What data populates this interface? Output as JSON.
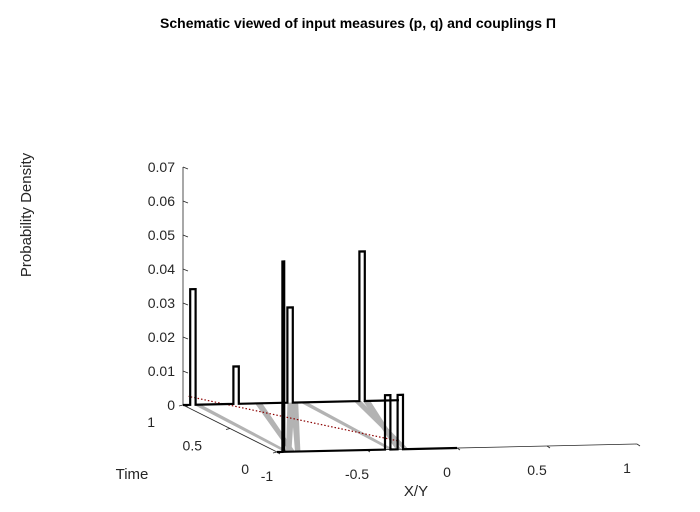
{
  "chart_data": {
    "type": "line",
    "title": "Schematic viewed of input measures (p, q) and couplings Π",
    "xlabel": "X/Y",
    "ylabel": "Time",
    "zlabel": "Probability Density",
    "xticks": [
      "-1",
      "-0.5",
      "0",
      "0.5",
      "1"
    ],
    "yticks": [
      "0",
      "0.5",
      "1"
    ],
    "zticks": [
      "0",
      "0.01",
      "0.02",
      "0.03",
      "0.04",
      "0.05",
      "0.06",
      "0.07"
    ],
    "xlim": [
      -1,
      1
    ],
    "ylim": [
      0,
      1
    ],
    "zlim": [
      0,
      0.07
    ],
    "grid": false,
    "series": [
      {
        "time": 0,
        "x": [
          -1,
          -0.97,
          -0.97,
          -0.96,
          -0.96,
          -0.4,
          -0.4,
          -0.37,
          -0.37,
          -0.33,
          -0.33,
          -0.3,
          -0.3,
          0
        ],
        "density": [
          0,
          0,
          0.056,
          0.056,
          0,
          0,
          0.016,
          0.016,
          0,
          0,
          0.016,
          0.016,
          0,
          0
        ]
      },
      {
        "time": 1,
        "x": [
          -1,
          -0.96,
          -0.96,
          -0.93,
          -0.93,
          -0.72,
          -0.72,
          -0.69,
          -0.69,
          -0.42,
          -0.42,
          -0.39,
          -0.39,
          -0.02,
          -0.02,
          0.01,
          0.01,
          0.2
        ],
        "density": [
          0,
          0,
          0.034,
          0.034,
          0,
          0,
          0.011,
          0.011,
          0,
          0,
          0.028,
          0.028,
          0,
          0,
          0.044,
          0.044,
          0,
          0
        ]
      }
    ],
    "couplings": [
      {
        "from_x": -0.96,
        "to_x": -0.94
      },
      {
        "from_x": -0.93,
        "to_x": -0.6
      },
      {
        "from_x": -0.9,
        "to_x": -0.4
      },
      {
        "from_x": -0.95,
        "to_x": -0.42
      },
      {
        "from_x": -0.38,
        "to_x": -0.35
      },
      {
        "from_x": -0.34,
        "to_x": 0.0
      },
      {
        "from_x": -0.3,
        "to_x": -0.05
      }
    ],
    "colors": {
      "line": "#000000",
      "coupling": "#b3b3b3",
      "dotted": "#8b0000"
    }
  }
}
